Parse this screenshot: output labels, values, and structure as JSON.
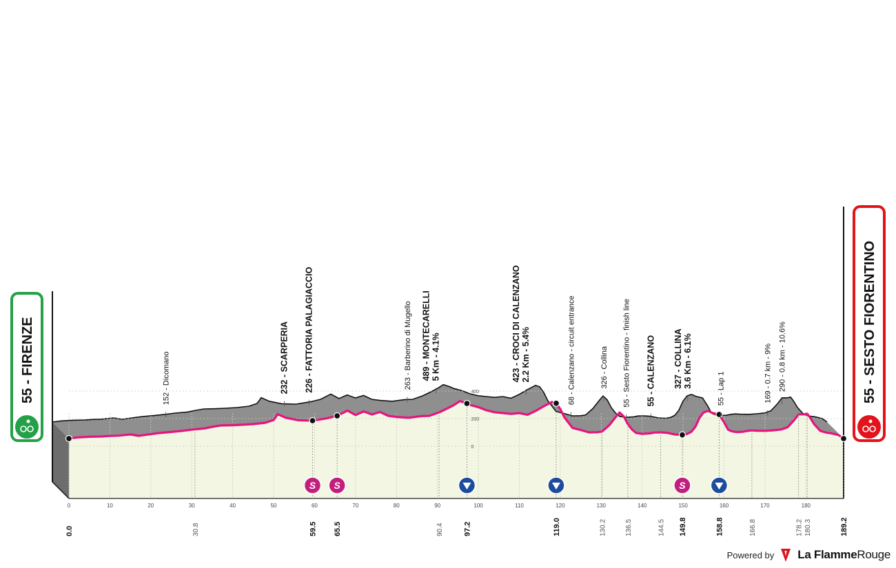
{
  "chart_data": {
    "type": "area",
    "title": "",
    "xlabel": "",
    "ylabel": "",
    "x_unit": "km",
    "xlim": [
      0,
      189.2
    ],
    "ylim": [
      -100,
      500
    ],
    "y_ticks": [
      0,
      200,
      400
    ],
    "x_ticks": [
      0,
      10,
      20,
      30,
      40,
      50,
      60,
      70,
      80,
      90,
      100,
      110,
      120,
      130,
      140,
      150,
      160,
      170,
      180
    ],
    "grid": true,
    "start": {
      "name": "FIRENZE",
      "altitude": "55",
      "label": "55 - FIRENZE",
      "km": "0.0"
    },
    "finish": {
      "name": "SESTO FIORENTINO",
      "altitude": "55",
      "label": "55 - SESTO FIORENTINO",
      "km": "189.2"
    },
    "profile": [
      [
        0,
        55
      ],
      [
        2,
        63
      ],
      [
        5,
        68
      ],
      [
        8,
        70
      ],
      [
        10,
        74
      ],
      [
        12,
        76
      ],
      [
        15,
        85
      ],
      [
        17,
        75
      ],
      [
        20,
        87
      ],
      [
        22,
        95
      ],
      [
        25,
        103
      ],
      [
        28,
        112
      ],
      [
        30,
        120
      ],
      [
        33,
        128
      ],
      [
        35,
        140
      ],
      [
        37,
        150
      ],
      [
        40,
        152
      ],
      [
        42,
        155
      ],
      [
        45,
        160
      ],
      [
        48,
        170
      ],
      [
        50,
        190
      ],
      [
        51,
        232
      ],
      [
        53,
        206
      ],
      [
        56,
        188
      ],
      [
        59.5,
        185
      ],
      [
        61,
        192
      ],
      [
        63,
        202
      ],
      [
        65.5,
        220
      ],
      [
        68,
        258
      ],
      [
        70,
        226
      ],
      [
        72,
        252
      ],
      [
        74,
        230
      ],
      [
        76,
        248
      ],
      [
        78,
        220
      ],
      [
        80,
        212
      ],
      [
        83,
        206
      ],
      [
        86,
        218
      ],
      [
        88,
        220
      ],
      [
        90.4,
        245
      ],
      [
        92,
        268
      ],
      [
        94,
        298
      ],
      [
        95.5,
        327
      ],
      [
        96,
        322
      ],
      [
        97.2,
        310
      ],
      [
        98,
        299
      ],
      [
        100,
        283
      ],
      [
        102,
        260
      ],
      [
        104,
        246
      ],
      [
        106,
        240
      ],
      [
        108,
        234
      ],
      [
        110,
        240
      ],
      [
        112,
        228
      ],
      [
        114,
        256
      ],
      [
        116,
        290
      ],
      [
        117,
        306
      ],
      [
        118,
        321
      ],
      [
        119,
        311
      ],
      [
        120,
        270
      ],
      [
        121,
        210
      ],
      [
        123,
        132
      ],
      [
        125,
        117
      ],
      [
        127,
        100
      ],
      [
        129,
        101
      ],
      [
        130.2,
        106
      ],
      [
        132,
        153
      ],
      [
        133.5,
        210
      ],
      [
        134.5,
        244
      ],
      [
        135.5,
        216
      ],
      [
        136.5,
        160
      ],
      [
        137.5,
        121
      ],
      [
        138.5,
        96
      ],
      [
        140,
        89
      ],
      [
        141,
        91
      ],
      [
        142,
        93
      ],
      [
        143,
        99
      ],
      [
        144.5,
        100
      ],
      [
        146,
        97
      ],
      [
        148,
        85
      ],
      [
        149.8,
        82
      ],
      [
        151,
        89
      ],
      [
        152,
        104
      ],
      [
        153,
        140
      ],
      [
        154,
        206
      ],
      [
        155,
        245
      ],
      [
        156,
        255
      ],
      [
        156.5,
        251
      ],
      [
        157,
        243
      ],
      [
        158.8,
        230
      ],
      [
        159,
        220
      ],
      [
        160,
        174
      ],
      [
        161,
        119
      ],
      [
        162,
        107
      ],
      [
        163,
        102
      ],
      [
        164.5,
        104
      ],
      [
        166,
        112
      ],
      [
        166.8,
        114
      ],
      [
        168,
        112
      ],
      [
        170,
        111
      ],
      [
        172,
        115
      ],
      [
        174,
        121
      ],
      [
        175.5,
        137
      ],
      [
        177,
        185
      ],
      [
        178.2,
        231
      ],
      [
        179.5,
        231
      ],
      [
        180.3,
        236
      ],
      [
        181,
        208
      ],
      [
        182,
        160
      ],
      [
        183.5,
        111
      ],
      [
        185,
        98
      ],
      [
        186,
        94
      ],
      [
        187,
        88
      ],
      [
        188,
        80
      ],
      [
        189.2,
        55
      ]
    ],
    "km_marks": [
      {
        "km": 0.0,
        "label": "0.0",
        "bold": true
      },
      {
        "km": 30.8,
        "label": "30.8",
        "bold": false
      },
      {
        "km": 59.5,
        "label": "59.5",
        "bold": true
      },
      {
        "km": 65.5,
        "label": "65.5",
        "bold": true
      },
      {
        "km": 90.4,
        "label": "90.4",
        "bold": false
      },
      {
        "km": 97.2,
        "label": "97.2",
        "bold": true
      },
      {
        "km": 119.0,
        "label": "119.0",
        "bold": true
      },
      {
        "km": 130.2,
        "label": "130.2",
        "bold": false
      },
      {
        "km": 136.5,
        "label": "136.5",
        "bold": false
      },
      {
        "km": 144.5,
        "label": "144.5",
        "bold": false
      },
      {
        "km": 149.8,
        "label": "149.8",
        "bold": true
      },
      {
        "km": 158.8,
        "label": "158.8",
        "bold": true
      },
      {
        "km": 166.8,
        "label": "166.8",
        "bold": false
      },
      {
        "km": 178.2,
        "label": "178.2",
        "bold": false
      },
      {
        "km": 180.3,
        "label": "180.3",
        "bold": false
      },
      {
        "km": 189.2,
        "label": "189.2",
        "bold": true
      }
    ],
    "annotations": [
      {
        "km": 27,
        "alt": 152,
        "lines": [
          "152 - Dicomano"
        ],
        "bold": false
      },
      {
        "km": 56,
        "alt": 232,
        "lines": [
          "232 - SCARPERIA"
        ],
        "bold": true
      },
      {
        "km": 62,
        "alt": 226,
        "lines": [
          "226 - FATTORIA PALAGIACCIO"
        ],
        "bold": true
      },
      {
        "km": 86,
        "alt": 263,
        "lines": [
          "263 - Barberino di Mugello"
        ],
        "bold": false
      },
      {
        "km": 93,
        "alt": 489,
        "lines": [
          "489 - MONTECARELLI",
          "5 Km - 4.1%"
        ],
        "bold": true
      },
      {
        "km": 115,
        "alt": 423,
        "lines": [
          "423 - CROCI DI CALENZANO",
          "2.2 Km - 5.4%"
        ],
        "bold": true
      },
      {
        "km": 126,
        "alt": 68,
        "lines": [
          "68 - Calenzano - circuit entrance"
        ],
        "bold": false
      },
      {
        "km": 134,
        "alt": 326,
        "lines": [
          "326 - Collina"
        ],
        "bold": false
      },
      {
        "km": 139.5,
        "alt": 55,
        "lines": [
          "55 - Sesto Fiorentino - finish line"
        ],
        "bold": false
      },
      {
        "km": 145.5,
        "alt": 55,
        "lines": [
          "55 - CALENZANO"
        ],
        "bold": true
      },
      {
        "km": 154.5,
        "alt": 327,
        "lines": [
          "327 - COLLINA",
          "3.6 Km - 6.1%"
        ],
        "bold": true
      },
      {
        "km": 162.5,
        "alt": 55,
        "lines": [
          "55 - Lap 1"
        ],
        "bold": false
      },
      {
        "km": 174,
        "alt": 169,
        "lines": [
          "169 - 0.7 km - 9%"
        ],
        "bold": false
      },
      {
        "km": 177.5,
        "alt": 290,
        "lines": [
          "290 - 0.8 km - 10.6%"
        ],
        "bold": false
      }
    ],
    "markers": [
      {
        "km": 59.5,
        "type": "sprint",
        "symbol": "S"
      },
      {
        "km": 65.5,
        "type": "sprint",
        "symbol": "S"
      },
      {
        "km": 97.2,
        "type": "gpm",
        "symbol": ""
      },
      {
        "km": 119.0,
        "type": "gpm",
        "symbol": ""
      },
      {
        "km": 149.8,
        "type": "sprint",
        "symbol": "S"
      },
      {
        "km": 158.8,
        "type": "gpm",
        "symbol": ""
      }
    ],
    "colors": {
      "profile_line": "#e5147f",
      "mountain": "#8f8f8f",
      "ground": "#f4f6e4",
      "start_badge": "#24a046",
      "finish_badge": "#e2131a",
      "sprint": "#c21f7d",
      "gpm": "#1d4c9c"
    }
  },
  "footer": {
    "powered_by": "Powered by",
    "brand_bold": "La Flamme",
    "brand_light": "Rouge"
  }
}
